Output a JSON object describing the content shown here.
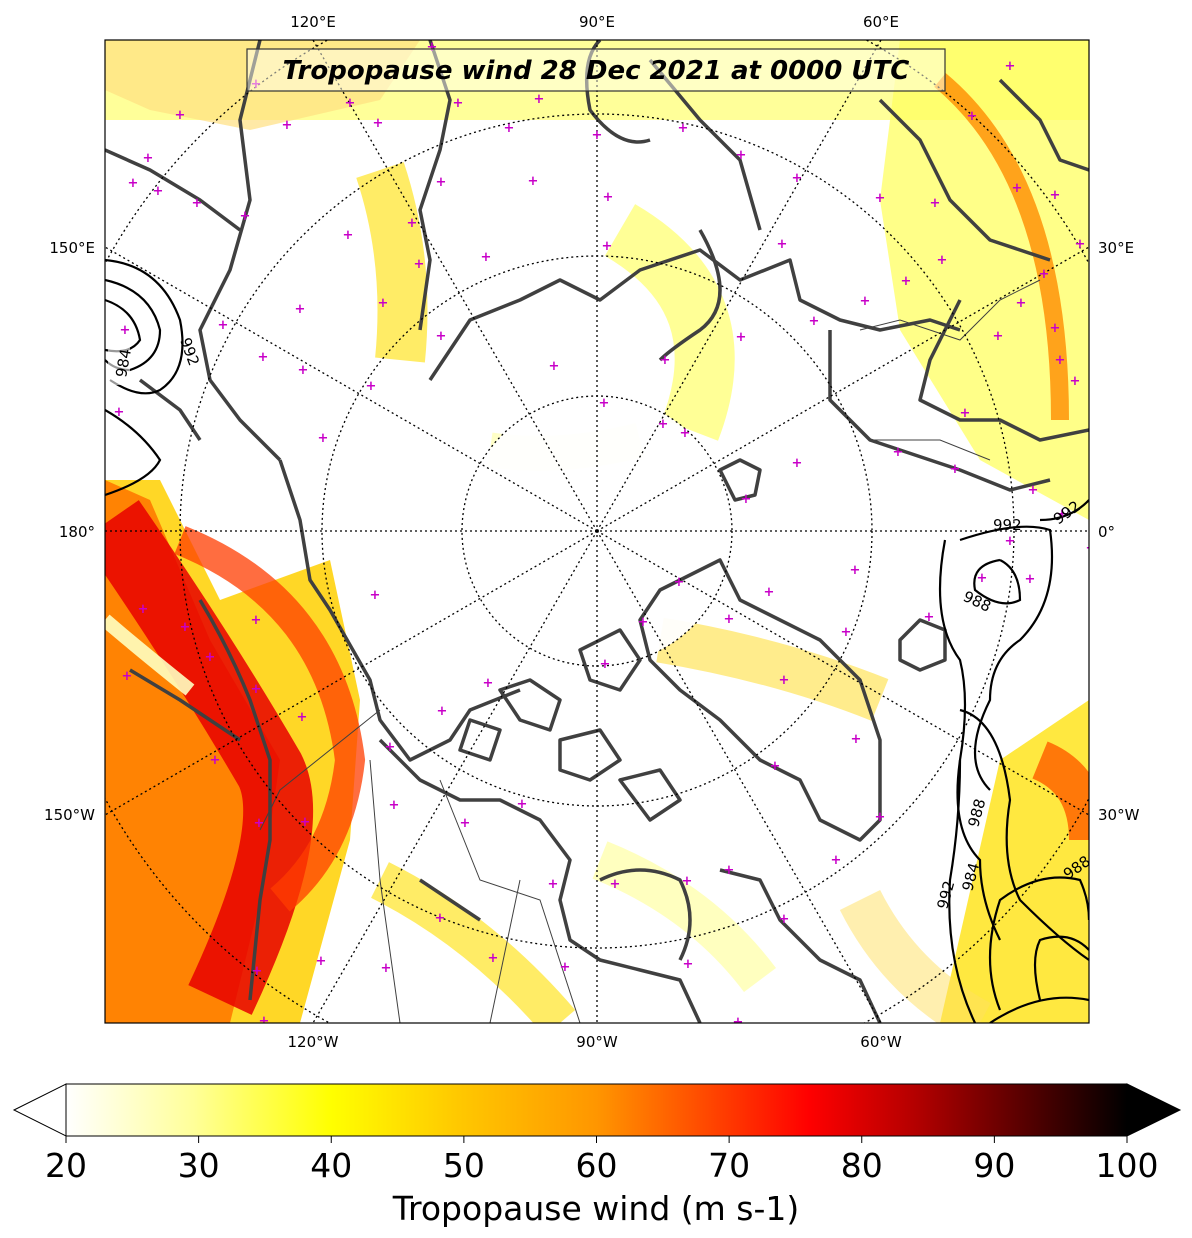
{
  "title": "Tropopause wind 28 Dec 2021 at 0000 UTC",
  "longitude_labels": {
    "top": [
      "120°E",
      "90°E",
      "60°E"
    ],
    "bottom": [
      "120°W",
      "90°W",
      "60°W"
    ],
    "left": [
      "150°E",
      "180°",
      "150°W"
    ],
    "right": [
      "30°E",
      "0°",
      "30°W"
    ]
  },
  "contour_labels": [
    "984",
    "992",
    "992",
    "992",
    "988",
    "988",
    "984",
    "992",
    "988"
  ],
  "colorbar": {
    "label": "Tropopause wind (m s-1)",
    "ticks": [
      "20",
      "30",
      "40",
      "50",
      "60",
      "70",
      "80",
      "90",
      "100"
    ],
    "min": 20,
    "max": 100,
    "extend": "both",
    "colormap": "hot_r",
    "colors": [
      "#ffffff",
      "#ffff99",
      "#ffff00",
      "#ffc800",
      "#ff9600",
      "#ff5000",
      "#ff0000",
      "#c80000",
      "#960000",
      "#500000",
      "#000000"
    ]
  },
  "station_marker_color": "#c800c8",
  "coastline_color": "#404040",
  "pressure_contour_color": "#000000"
}
